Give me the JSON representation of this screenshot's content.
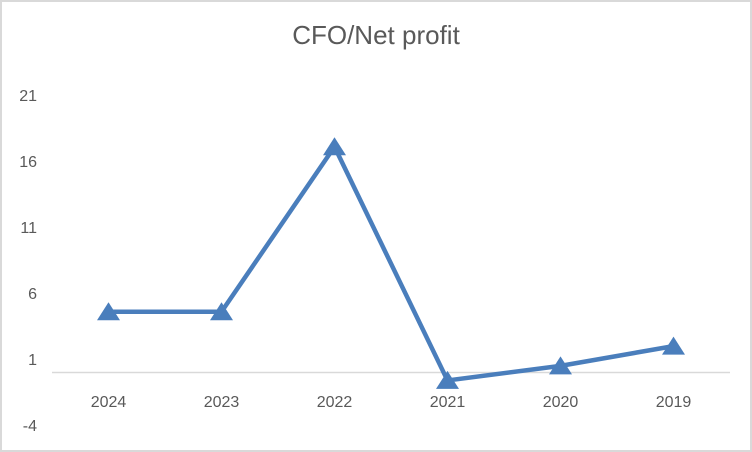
{
  "window": {
    "background": "#ffffff",
    "border_color": "#d9d9d9"
  },
  "chart_data": {
    "type": "line",
    "title": "CFO/Net profit",
    "categories": [
      "2024",
      "2023",
      "2022",
      "2021",
      "2020",
      "2019"
    ],
    "values": [
      4.6,
      4.6,
      17.1,
      -0.6,
      0.5,
      2.0
    ],
    "y_ticks": [
      21,
      16,
      11,
      6,
      1,
      -4
    ],
    "ylim": [
      -4,
      21
    ],
    "xlabel": "",
    "ylabel": "",
    "grid": false,
    "legend_position": "none",
    "marker": "triangle-up",
    "colors": {
      "series": "#4a7ebc",
      "axis_line": "#d9d9d9",
      "labels": "#595959",
      "title": "#595959"
    }
  }
}
